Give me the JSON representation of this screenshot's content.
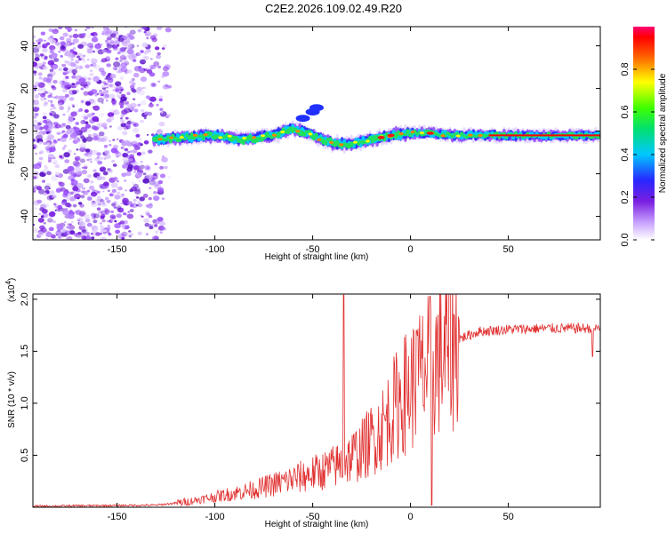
{
  "title": "C2E2.2026.109.02.49.R20",
  "charts": [
    {
      "type": "heatmap",
      "name": "spectrum",
      "xlabel": "Height of straight line (km)",
      "ylabel": "Frequency (Hz)",
      "xlim": [
        -193,
        97
      ],
      "ylim": [
        -51,
        49
      ],
      "xticks": [
        -150,
        -100,
        -50,
        0,
        50
      ],
      "yticks": [
        40,
        20,
        0,
        -20,
        -40
      ],
      "signal_track": {
        "description_points_x": [
          -130,
          -115,
          -100,
          -85,
          -70,
          -60,
          -52,
          -45,
          -38,
          -30,
          -20,
          -10,
          0,
          10,
          20,
          40,
          60,
          80,
          97
        ],
        "frequency_hz": [
          -4,
          -3,
          -2,
          -4,
          -2,
          1,
          -1,
          -4,
          -6,
          -6,
          -4,
          -2,
          -1,
          -1,
          -2,
          -2,
          -2,
          -2,
          -2
        ]
      },
      "colorbar": {
        "label": "Normalized spectral amplitude",
        "range": [
          0.0,
          1.0
        ],
        "ticks": [
          0.0,
          0.2,
          0.4,
          0.6,
          0.8
        ]
      }
    },
    {
      "type": "line",
      "name": "snr",
      "xlabel": "Height of straight line (km)",
      "ylabel": "SNR (10 * v/v)",
      "scale_label": "(x10",
      "scale_exp": "4",
      "scale_close": ")",
      "xlim": [
        -193,
        97
      ],
      "ylim": [
        0,
        2.05
      ],
      "xticks": [
        -150,
        -100,
        -50,
        0,
        50
      ],
      "yticks": [
        2.0,
        1.5,
        1.0,
        0.5
      ],
      "series_color": "#e03030",
      "trend": {
        "x": [
          -193,
          -130,
          -115,
          -100,
          -80,
          -60,
          -45,
          -35,
          -25,
          -15,
          -5,
          5,
          15,
          25,
          35,
          50,
          70,
          97
        ],
        "y": [
          0.01,
          0.02,
          0.05,
          0.1,
          0.17,
          0.27,
          0.35,
          0.42,
          0.55,
          0.75,
          1.05,
          1.25,
          1.45,
          1.62,
          1.69,
          1.71,
          1.72,
          1.72
        ]
      },
      "spikes": [
        {
          "x": -34,
          "y": 2.04
        },
        {
          "x": 10,
          "y": 2.03
        },
        {
          "x": 3,
          "y": 1.7
        },
        {
          "x": 11,
          "y": 0.02
        },
        {
          "x": 93,
          "y": 1.45
        }
      ]
    }
  ]
}
